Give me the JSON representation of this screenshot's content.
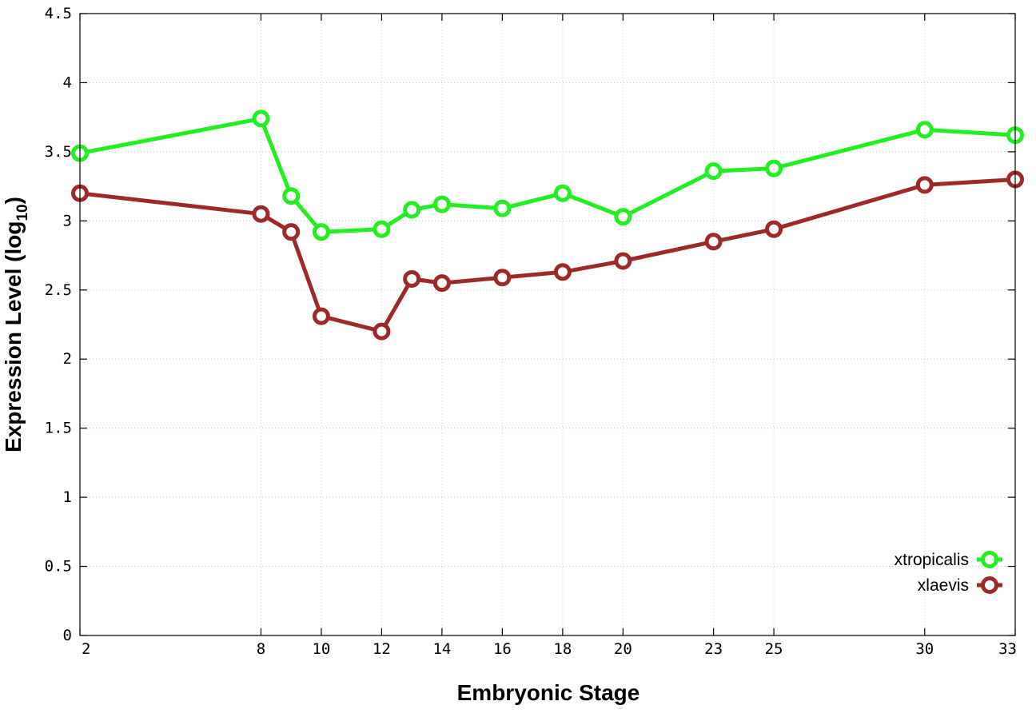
{
  "chart_data": {
    "type": "line",
    "xlabel": "Embryonic Stage",
    "ylabel": "Expression Level (log",
    "ylabel_sub": "10",
    "ylabel_close": ")",
    "x": [
      2,
      8,
      9,
      10,
      12,
      13,
      14,
      16,
      18,
      20,
      23,
      25,
      30,
      33
    ],
    "x_ticks": [
      "2",
      "8",
      "10",
      "12",
      "14",
      "16",
      "18",
      "20",
      "23",
      "25",
      "30",
      "33"
    ],
    "y_ticks": [
      "0",
      "0.5",
      "1",
      "1.5",
      "2",
      "2.5",
      "3",
      "3.5",
      "4",
      "4.5"
    ],
    "xlim": [
      2,
      33
    ],
    "ylim": [
      0,
      4.5
    ],
    "grid": true,
    "legend_position": "bottom-right",
    "series": [
      {
        "name": "xtropicalis",
        "color": "#22ee22",
        "values": [
          3.49,
          3.74,
          3.18,
          2.92,
          2.94,
          3.08,
          3.12,
          3.09,
          3.2,
          3.03,
          3.36,
          3.38,
          3.66,
          3.62
        ]
      },
      {
        "name": "xlaevis",
        "color": "#9c2a2a",
        "values": [
          3.2,
          3.05,
          2.92,
          2.31,
          2.2,
          2.58,
          2.55,
          2.59,
          2.63,
          2.71,
          2.85,
          2.94,
          3.26,
          3.3
        ]
      }
    ]
  }
}
